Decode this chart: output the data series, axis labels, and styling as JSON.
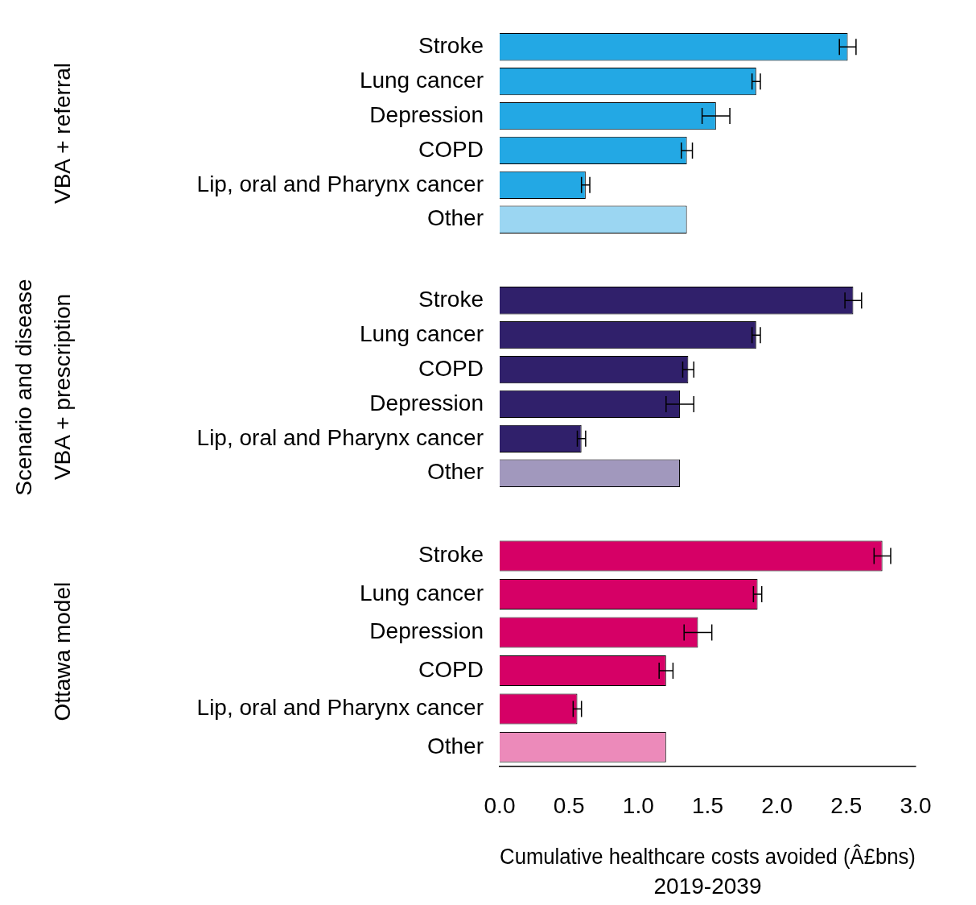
{
  "chart_data": [
    {
      "type": "bar",
      "orientation": "horizontal",
      "ylabel": "VBA + referral",
      "categories": [
        "Stroke",
        "Lung cancer",
        "Depression",
        "COPD",
        "Lip, oral and Pharynx cancer",
        "Other"
      ],
      "values": [
        2.51,
        1.85,
        1.56,
        1.35,
        0.62,
        1.35
      ],
      "errors": [
        0.06,
        0.03,
        0.1,
        0.04,
        0.03,
        null
      ],
      "colors": [
        "#23a8e4",
        "#23a8e4",
        "#23a8e4",
        "#23a8e4",
        "#23a8e4",
        "#9bd6f2"
      ],
      "xlim": [
        0,
        3
      ],
      "tick_labels": "y",
      "grid": false,
      "legend": false
    },
    {
      "type": "bar",
      "orientation": "horizontal",
      "ylabel": "VBA + prescription",
      "annotations": [
        "Scenario and disease"
      ],
      "categories": [
        "Stroke",
        "Lung cancer",
        "COPD",
        "Depression",
        "Lip, oral and Pharynx cancer",
        "Other"
      ],
      "values": [
        2.55,
        1.85,
        1.36,
        1.3,
        0.59,
        1.3
      ],
      "errors": [
        0.06,
        0.03,
        0.04,
        0.1,
        0.03,
        null
      ],
      "colors": [
        "#30206b",
        "#30206b",
        "#30206b",
        "#30206b",
        "#30206b",
        "#a198bd"
      ],
      "xlim": [
        0,
        3
      ],
      "tick_labels": "y",
      "grid": false,
      "legend": false
    },
    {
      "type": "bar",
      "orientation": "horizontal",
      "ylabel": "Ottawa model",
      "xlabel": "Cumulative healthcare costs avoided (Â£bns)\n2019-2039",
      "categories": [
        "Stroke",
        "Lung cancer",
        "Depression",
        "COPD",
        "Lip, oral and Pharynx cancer",
        "Other"
      ],
      "values": [
        2.76,
        1.86,
        1.43,
        1.2,
        0.56,
        1.2
      ],
      "errors": [
        0.06,
        0.03,
        0.1,
        0.05,
        0.03,
        null
      ],
      "colors": [
        "#d60066",
        "#d60066",
        "#d60066",
        "#d60066",
        "#d60066",
        "#ec8aba"
      ],
      "xlim": [
        0,
        3
      ],
      "xticks": [
        {
          "value": 0,
          "label": "0.0"
        },
        0.5,
        {
          "value": 1,
          "label": "1.0"
        },
        1.5,
        {
          "value": 2,
          "label": "2.0"
        },
        2.5,
        {
          "value": 3,
          "label": "3.0"
        }
      ],
      "grid": false,
      "legend": false
    }
  ]
}
